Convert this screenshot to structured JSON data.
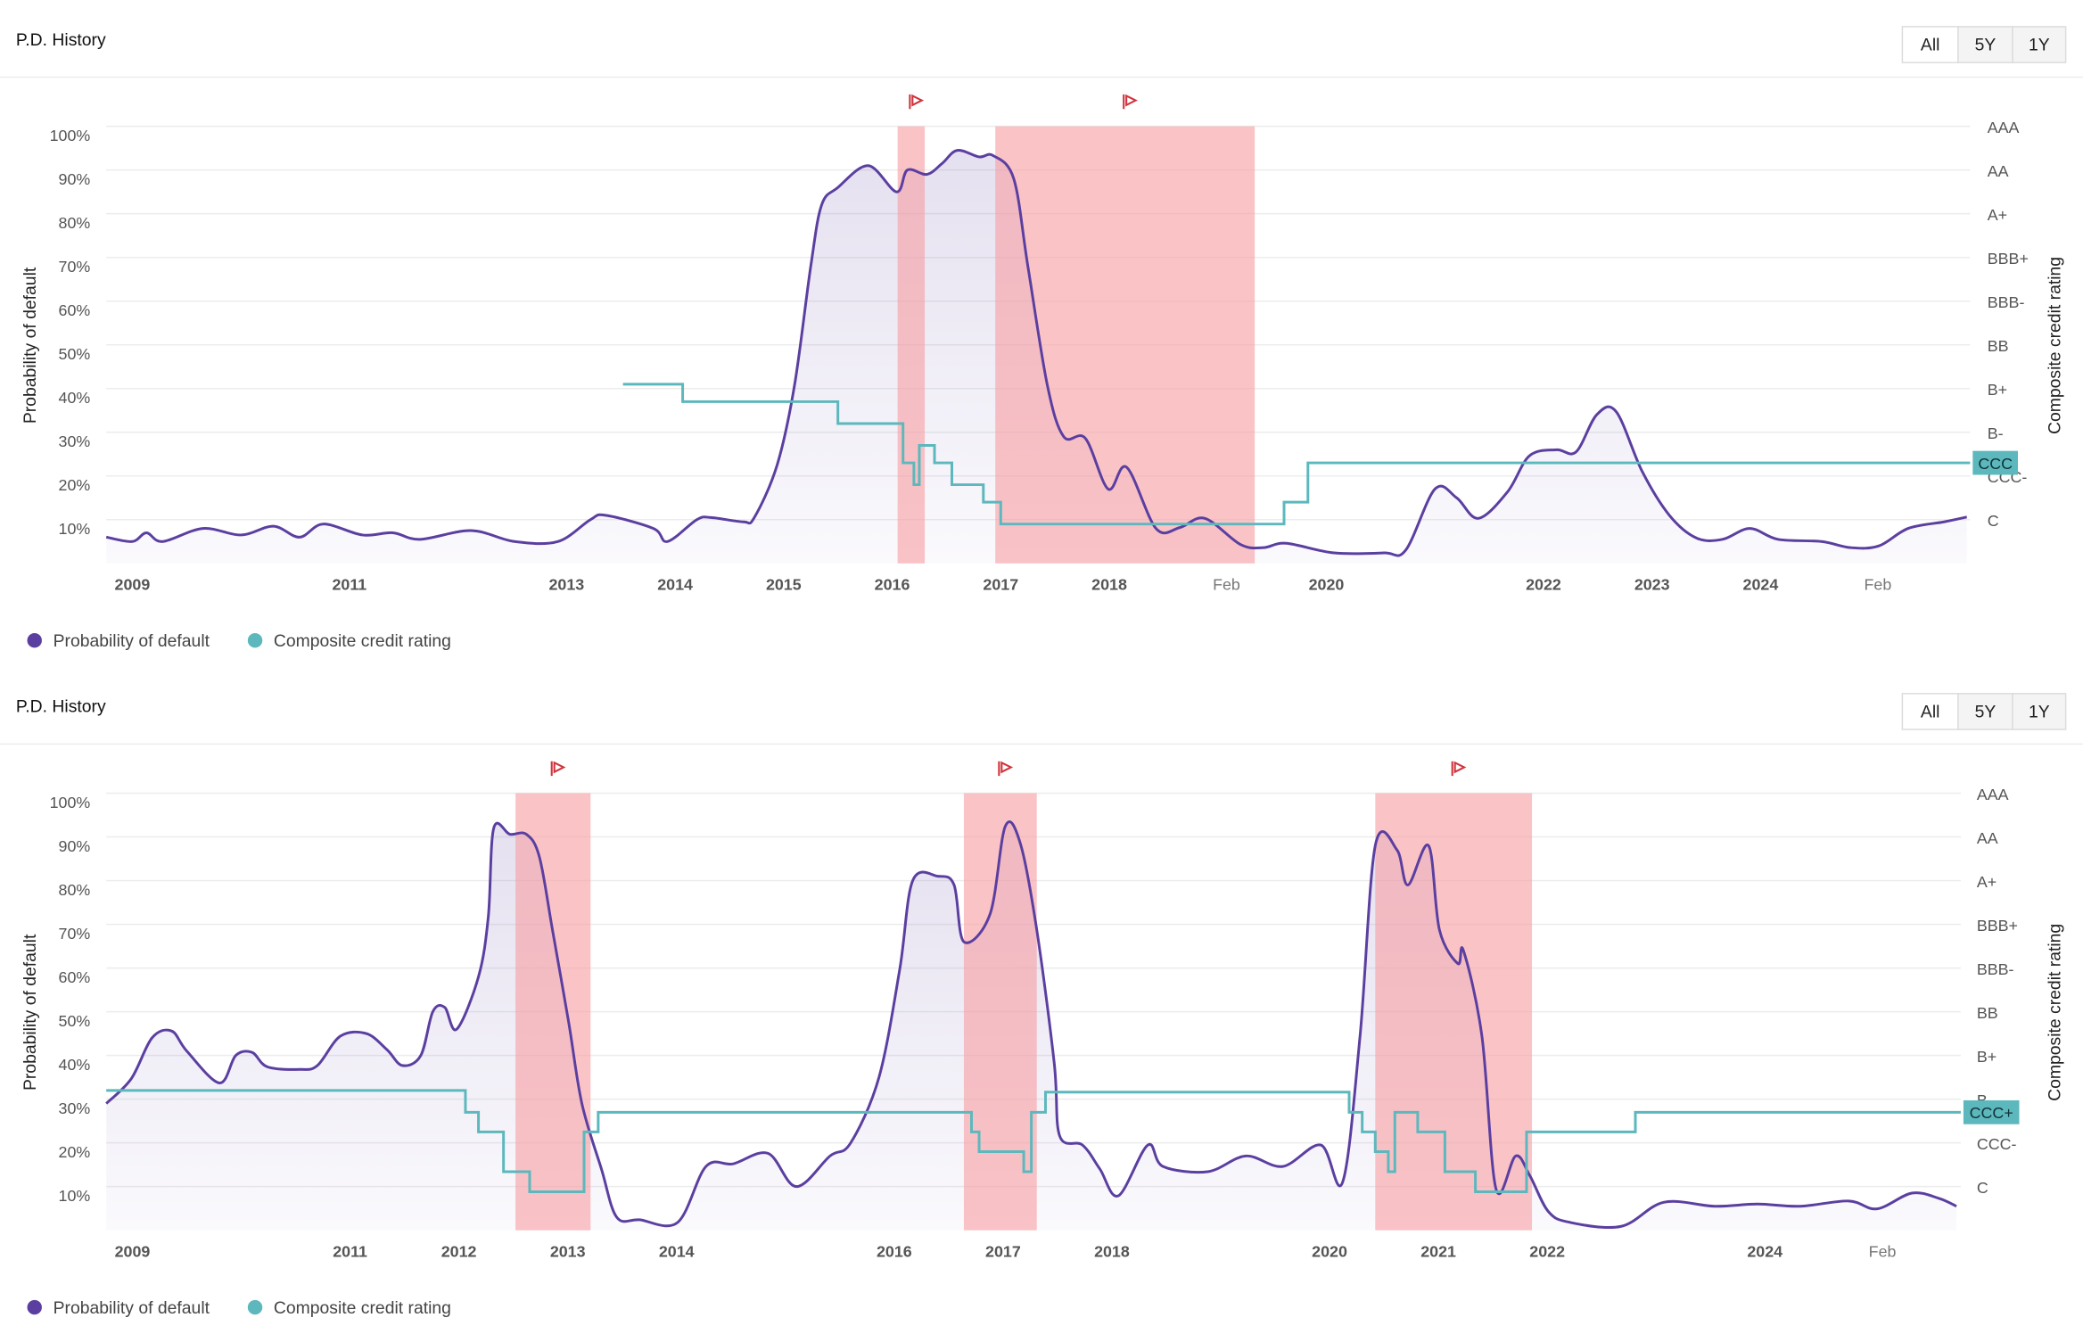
{
  "panels": [
    {
      "title": "P.D. History",
      "buttons": [
        "All",
        "5Y",
        "1Y"
      ]
    },
    {
      "title": "P.D. History",
      "buttons": [
        "All",
        "5Y",
        "1Y"
      ]
    }
  ],
  "chart_data": [
    {
      "type": "line",
      "y_label": "Probability of default",
      "y2_label": "Composite credit rating",
      "xlim": [
        2008.76,
        2025.93
      ],
      "xticks": [
        2009,
        2011,
        2013,
        2014,
        2015,
        2016,
        2017,
        2018,
        {
          "value": 2019.08,
          "label": "Feb"
        },
        2020,
        2022,
        2023,
        2024,
        {
          "value": 2025.08,
          "label": "Feb"
        }
      ],
      "ylim": [
        0,
        100
      ],
      "yticks": [
        {
          "value": 10,
          "label": "10%"
        },
        {
          "value": 20,
          "label": "20%"
        },
        {
          "value": 30,
          "label": "30%"
        },
        {
          "value": 40,
          "label": "40%"
        },
        {
          "value": 50,
          "label": "50%"
        },
        {
          "value": 60,
          "label": "60%"
        },
        {
          "value": 70,
          "label": "70%"
        },
        {
          "value": 80,
          "label": "80%"
        },
        {
          "value": 90,
          "label": "90%"
        },
        {
          "value": 100,
          "label": "100%"
        }
      ],
      "y2lim": [
        0,
        100
      ],
      "y2ticks": [
        {
          "value": 10,
          "label": "C"
        },
        {
          "value": 20,
          "label": "CCC-"
        },
        {
          "value": 30,
          "label": "B-"
        },
        {
          "value": 40,
          "label": "B+"
        },
        {
          "value": 50,
          "label": "BB"
        },
        {
          "value": 60,
          "label": "BBB-"
        },
        {
          "value": 70,
          "label": "BBB+"
        },
        {
          "value": 80,
          "label": "A+"
        },
        {
          "value": 90,
          "label": "AA"
        },
        {
          "value": 100,
          "label": "AAA"
        }
      ],
      "grid": true,
      "regions": [
        [
          2016.05,
          2016.3
        ],
        [
          2016.95,
          2019.34
        ]
      ],
      "series": [
        {
          "name": "Probability of default",
          "color": "#5b3fa0",
          "style": "smooth",
          "x": [
            2008.76,
            2009,
            2009.13,
            2009.28,
            2009.65,
            2010.0,
            2010.3,
            2010.54,
            2010.76,
            2011.12,
            2011.4,
            2011.65,
            2012.12,
            2012.52,
            2012.92,
            2013.22,
            2013.36,
            2013.8,
            2013.93,
            2014.2,
            2014.33,
            2014.63,
            2014.73,
            2014.94,
            2015.1,
            2015.25,
            2015.35,
            2015.5,
            2015.78,
            2016.04,
            2016.14,
            2016.32,
            2016.46,
            2016.6,
            2016.8,
            2016.93,
            2017.12,
            2017.25,
            2017.43,
            2017.58,
            2017.78,
            2017.99,
            2018.16,
            2018.43,
            2018.65,
            2018.88,
            2019.21,
            2019.42,
            2019.63,
            2020.07,
            2020.53,
            2020.73,
            2021.0,
            2021.2,
            2021.4,
            2021.67,
            2021.87,
            2022.12,
            2022.3,
            2022.49,
            2022.67,
            2022.91,
            2023.16,
            2023.41,
            2023.65,
            2023.9,
            2024.16,
            2024.56,
            2024.83,
            2025.09,
            2025.36,
            2025.69,
            2025.9
          ],
          "values": [
            6,
            5,
            7,
            5,
            8,
            6.5,
            8.5,
            6,
            9,
            6.5,
            7,
            5.5,
            7.5,
            5,
            5,
            10,
            11,
            8,
            5,
            10,
            10.5,
            9.5,
            10.5,
            22.5,
            40.7,
            68,
            82,
            86,
            91,
            85,
            90,
            89,
            91.5,
            94.5,
            93,
            93.3,
            88,
            68,
            40.7,
            29,
            28.6,
            17,
            22,
            8,
            8.2,
            10.3,
            4.3,
            3.6,
            4.6,
            2.4,
            2.4,
            3,
            17,
            15,
            10.3,
            16.4,
            24.6,
            26,
            25.5,
            34,
            34.7,
            21,
            11,
            5.8,
            5.5,
            8,
            5.5,
            5,
            3.6,
            4,
            8,
            9.5,
            10.6
          ]
        },
        {
          "name": "Composite credit rating",
          "color": "#5cb8bd",
          "style": "step",
          "axis": "y2",
          "current_label": "CCC",
          "x": [
            2013.52,
            2014.07,
            2015.5,
            2016.1,
            2016.2,
            2016.25,
            2016.39,
            2016.55,
            2016.84,
            2017.0,
            2019.61,
            2019.83,
            2025.93
          ],
          "values": [
            41,
            37,
            32,
            23,
            18,
            27,
            23,
            18,
            14,
            9,
            14,
            23,
            23
          ]
        }
      ]
    },
    {
      "type": "line",
      "y_label": "Probability of default",
      "y2_label": "Composite credit rating",
      "xlim": [
        2008.76,
        2025.8
      ],
      "xticks": [
        2009,
        2011,
        2012,
        2013,
        2014,
        2016,
        2017,
        2018,
        2020,
        2021,
        2022,
        2024,
        {
          "value": 2025.08,
          "label": "Feb"
        }
      ],
      "ylim": [
        0,
        100
      ],
      "yticks": [
        {
          "value": 10,
          "label": "10%"
        },
        {
          "value": 20,
          "label": "20%"
        },
        {
          "value": 30,
          "label": "30%"
        },
        {
          "value": 40,
          "label": "40%"
        },
        {
          "value": 50,
          "label": "50%"
        },
        {
          "value": 60,
          "label": "60%"
        },
        {
          "value": 70,
          "label": "70%"
        },
        {
          "value": 80,
          "label": "80%"
        },
        {
          "value": 90,
          "label": "90%"
        },
        {
          "value": 100,
          "label": "100%"
        }
      ],
      "y2lim": [
        0,
        100
      ],
      "y2ticks": [
        {
          "value": 10,
          "label": "C"
        },
        {
          "value": 20,
          "label": "CCC-"
        },
        {
          "value": 30,
          "label": "B-"
        },
        {
          "value": 40,
          "label": "B+"
        },
        {
          "value": 50,
          "label": "BB"
        },
        {
          "value": 60,
          "label": "BBB-"
        },
        {
          "value": 70,
          "label": "BBB+"
        },
        {
          "value": 80,
          "label": "A+"
        },
        {
          "value": 90,
          "label": "AA"
        },
        {
          "value": 100,
          "label": "AAA"
        }
      ],
      "grid": true,
      "regions": [
        [
          2012.52,
          2013.21
        ],
        [
          2016.64,
          2017.31
        ],
        [
          2020.42,
          2021.86
        ]
      ],
      "series": [
        {
          "name": "Probability of default",
          "color": "#5b3fa0",
          "style": "smooth",
          "x": [
            2008.76,
            2008.99,
            2009.18,
            2009.36,
            2009.5,
            2009.8,
            2009.95,
            2010.1,
            2010.24,
            2010.54,
            2010.7,
            2010.91,
            2011.15,
            2011.34,
            2011.48,
            2011.65,
            2011.76,
            2011.87,
            2011.98,
            2012.18,
            2012.27,
            2012.32,
            2012.47,
            2012.62,
            2012.74,
            2012.86,
            2013.01,
            2013.13,
            2013.31,
            2013.45,
            2013.66,
            2014.01,
            2014.27,
            2014.52,
            2014.84,
            2015.1,
            2015.41,
            2015.6,
            2015.86,
            2016.05,
            2016.17,
            2016.4,
            2016.55,
            2016.64,
            2016.88,
            2017.02,
            2017.16,
            2017.31,
            2017.47,
            2017.52,
            2017.73,
            2017.89,
            2018.06,
            2018.33,
            2018.47,
            2018.88,
            2019.23,
            2019.57,
            2019.92,
            2020.12,
            2020.28,
            2020.42,
            2020.62,
            2020.72,
            2020.91,
            2021.01,
            2021.18,
            2021.23,
            2021.4,
            2021.53,
            2021.71,
            2021.84,
            2022.01,
            2022.21,
            2022.68,
            2023.07,
            2023.54,
            2023.93,
            2024.32,
            2024.77,
            2025.03,
            2025.35,
            2025.6,
            2025.76
          ],
          "values": [
            29,
            34.7,
            44,
            45.6,
            41,
            33.7,
            40,
            40.7,
            37.4,
            36.8,
            37.7,
            44.4,
            45,
            41.3,
            37.7,
            40,
            50,
            51,
            46,
            58,
            71.7,
            92,
            90.6,
            90.6,
            85.4,
            68.7,
            47.4,
            29,
            14,
            3,
            2.4,
            1.8,
            14.6,
            15.2,
            17.6,
            10,
            17,
            20,
            35,
            59.6,
            80,
            81,
            79,
            66,
            72.3,
            92.4,
            88.4,
            68.7,
            38.3,
            21.6,
            19.5,
            14,
            7.9,
            19.5,
            14.6,
            13.4,
            17,
            14.6,
            19.5,
            11,
            44.4,
            88,
            87,
            79,
            88,
            68.7,
            61,
            64,
            44.4,
            9.4,
            17,
            12.5,
            4.3,
            1.8,
            0.9,
            6.4,
            5.5,
            6,
            5.5,
            6.7,
            4.9,
            8.5,
            7.3,
            5.5
          ]
        },
        {
          "name": "Composite credit rating",
          "color": "#5cb8bd",
          "style": "step",
          "axis": "y2",
          "current_label": "CCC+",
          "x": [
            2008.76,
            2012.06,
            2012.18,
            2012.41,
            2012.65,
            2013.15,
            2013.28,
            2016.71,
            2016.78,
            2017.19,
            2017.26,
            2017.39,
            2020.18,
            2020.3,
            2020.42,
            2020.54,
            2020.6,
            2020.81,
            2021.06,
            2021.34,
            2021.81,
            2022.81,
            2025.8
          ],
          "values": [
            32,
            27,
            22.5,
            13.4,
            8.8,
            22.5,
            27,
            22.5,
            18,
            13.4,
            27,
            31.6,
            27,
            22.5,
            18,
            13.4,
            27,
            22.5,
            13.4,
            8.8,
            22.5,
            27,
            27
          ]
        }
      ]
    }
  ]
}
